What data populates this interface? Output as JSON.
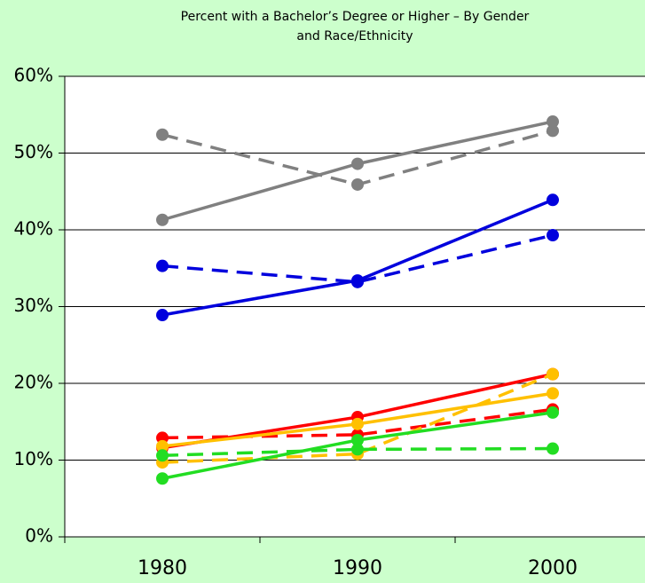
{
  "chart_data": {
    "type": "line",
    "title": "Percent with a Bachelor’s Degree or Higher – By Gender and Race/Ethnicity",
    "categories": [
      "1980",
      "1990",
      "2000"
    ],
    "series": [
      {
        "color": "#808080",
        "dashed": false,
        "values": [
          41.3,
          48.6,
          54.1
        ]
      },
      {
        "color": "#808080",
        "dashed": true,
        "values": [
          52.4,
          45.9,
          52.9
        ]
      },
      {
        "color": "#0000dd",
        "dashed": false,
        "values": [
          28.9,
          33.4,
          43.9
        ]
      },
      {
        "color": "#0000dd",
        "dashed": true,
        "values": [
          35.3,
          33.2,
          39.3
        ]
      },
      {
        "color": "#ff0000",
        "dashed": false,
        "values": [
          11.6,
          15.6,
          21.2
        ]
      },
      {
        "color": "#ff0000",
        "dashed": true,
        "values": [
          12.9,
          13.3,
          16.6
        ]
      },
      {
        "color": "#ffc000",
        "dashed": false,
        "values": [
          11.8,
          14.7,
          18.7
        ]
      },
      {
        "color": "#ffc000",
        "dashed": true,
        "values": [
          9.7,
          10.8,
          21.2
        ]
      },
      {
        "color": "#22dd22",
        "dashed": false,
        "values": [
          7.6,
          12.6,
          16.2
        ]
      },
      {
        "color": "#22dd22",
        "dashed": true,
        "values": [
          10.6,
          11.4,
          11.5
        ]
      }
    ],
    "ylim": [
      0,
      60
    ],
    "yticks": [
      {
        "value": 0,
        "label": "0%"
      },
      {
        "value": 10,
        "label": "10%"
      },
      {
        "value": 20,
        "label": "20%"
      },
      {
        "value": 30,
        "label": "30%"
      },
      {
        "value": 40,
        "label": "40%"
      },
      {
        "value": 50,
        "label": "50%"
      },
      {
        "value": 60,
        "label": "60%"
      }
    ],
    "grid": true
  }
}
